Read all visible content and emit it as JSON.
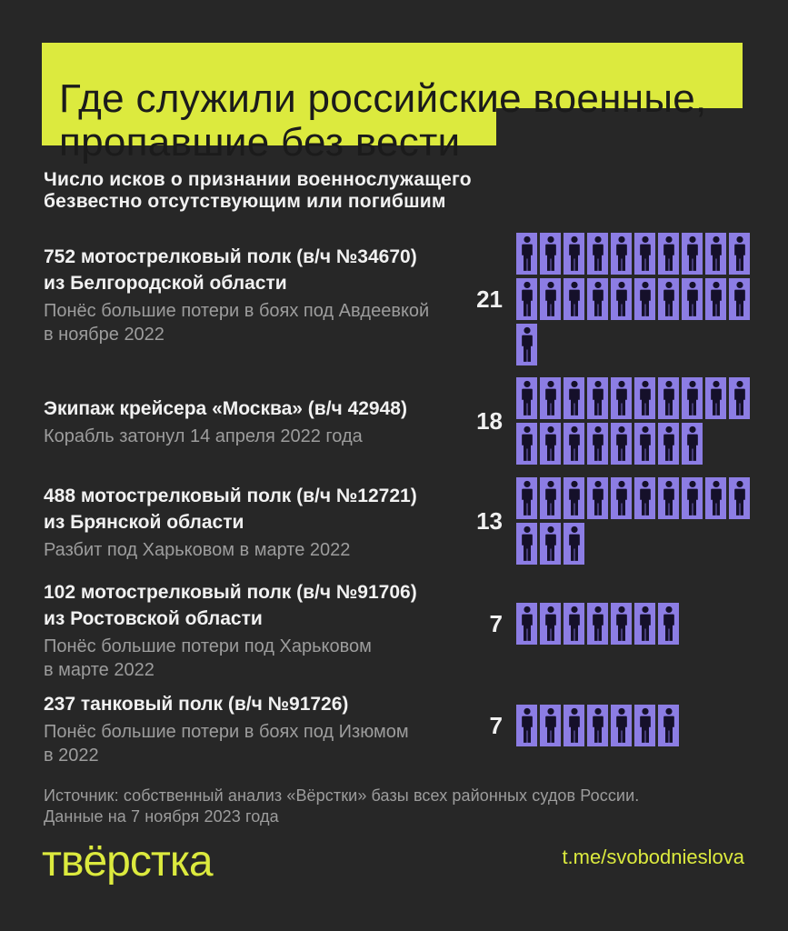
{
  "colors": {
    "background": "#272727",
    "accent_yellow": "#dcea3e",
    "pictogram_purple": "#8c7de4",
    "pictogram_figure": "#15102a",
    "text_white": "#f1f1f1",
    "text_gray": "#9d9d9d",
    "title_text": "#1b1b1b"
  },
  "header": {
    "title_lines": [
      "Где служили российские военные,",
      "пропавшие без вести"
    ],
    "subtitle_lines": [
      "Число исков о признании военнослужащего",
      "безвестно отсутствующим или погибшим"
    ]
  },
  "entries": [
    {
      "title_lines": [
        "752 мотострелковый полк (в/ч №34670)",
        "из Белгородской области"
      ],
      "desc_lines": [
        "Понёс большие потери в боях под Авдеевкой",
        "в ноябре 2022"
      ],
      "count": 21
    },
    {
      "title_lines": [
        "Экипаж крейсера «Москва» (в/ч 42948)"
      ],
      "desc_lines": [
        "Корабль затонул 14 апреля 2022 года"
      ],
      "count": 18
    },
    {
      "title_lines": [
        "488 мотострелковый полк (в/ч №12721)",
        "из Брянской области"
      ],
      "desc_lines": [
        "Разбит под Харьковом в марте 2022"
      ],
      "count": 13
    },
    {
      "title_lines": [
        "102 мотострелковый полк (в/ч №91706)",
        "из Ростовской области"
      ],
      "desc_lines": [
        "Понёс большие потери под Харьковом",
        "в марте 2022"
      ],
      "count": 7
    },
    {
      "title_lines": [
        "237 танковый полк (в/ч №91726)"
      ],
      "desc_lines": [
        "Понёс большие потери в боях под Изюмом",
        "в 2022"
      ],
      "count": 7
    }
  ],
  "source_lines": [
    "Источник: собственный анализ «Вёрстки» базы всех районных судов России.",
    "Данные на 7 ноября 2023 года"
  ],
  "footer": {
    "logo_text": "твёрстка",
    "telegram_link": "t.me/svobodnieslova"
  },
  "pictogram": {
    "icon": "person-icon",
    "per_row": 10
  },
  "chart_data": {
    "type": "bar",
    "variant": "pictogram unit chart — 1 figure = 1 lawsuit, wrapped in rows of 10",
    "title": "Где служили российские военные, пропавшие без вести",
    "subtitle": "Число исков о признании военнослужащего безвестно отсутствующим или погибшим",
    "categories": [
      "752 мотострелковый полк (в/ч №34670) из Белгородской области",
      "Экипаж крейсера «Москва» (в/ч 42948)",
      "488 мотострелковый полк (в/ч №12721) из Брянской области",
      "102 мотострелковый полк (в/ч №91706) из Ростовской области",
      "237 танковый полк (в/ч №91726)"
    ],
    "values": [
      21,
      18,
      13,
      7,
      7
    ],
    "annotations": [
      "Понёс большие потери в боях под Авдеевкой в ноябре 2022",
      "Корабль затонул 14 апреля 2022 года",
      "Разбит под Харьковом в марте 2022",
      "Понёс большие потери под Харьковом в марте 2022",
      "Понёс большие потери в боях под Изюмом в 2022"
    ],
    "legend_position": "none",
    "grid": false,
    "source": "Источник: собственный анализ «Вёрстки» базы всех районных судов России. Данные на 7 ноября 2023 года"
  }
}
